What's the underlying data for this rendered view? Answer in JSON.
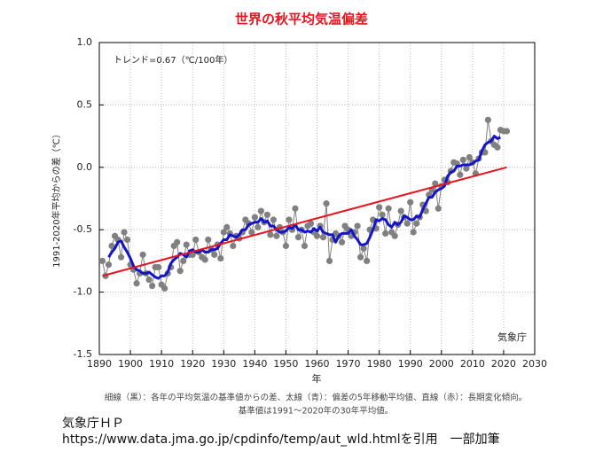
{
  "chart_data": {
    "type": "line",
    "title": "世界の秋平均気温偏差",
    "annotation": "トレンド=0.67（℃/100年）",
    "ylabel": "1991-2020年平均からの差（℃）",
    "xlabel": "年",
    "watermark": "気象庁",
    "footnotes": [
      "細線（黒）：各年の平均気温の基準値からの差、太線（青）：偏差の5年移動平均値、直線（赤）：長期変化傾向。",
      "基準値は1991～2020年の30年平均値。"
    ],
    "source": [
      "気象庁ＨＰ",
      "https://www.data.jma.go.jp/cpdinfo/temp/aut_wld.htmlを引用　一部加筆"
    ],
    "xlim": [
      1890,
      2030
    ],
    "xticks": [
      1890,
      1900,
      1910,
      1920,
      1930,
      1940,
      1950,
      1960,
      1970,
      1980,
      1990,
      2000,
      2010,
      2020,
      2030
    ],
    "ylim": [
      -1.5,
      1.0
    ],
    "yticks": [
      -1.5,
      {
        "value": -1,
        "label": "-1.0"
      },
      -0.5,
      {
        "value": 0,
        "label": "0.0"
      },
      0.5,
      {
        "value": 1,
        "label": "1.0"
      }
    ],
    "grid": true,
    "x": [
      1891,
      1892,
      1893,
      1894,
      1895,
      1896,
      1897,
      1898,
      1899,
      1900,
      1901,
      1902,
      1903,
      1904,
      1905,
      1906,
      1907,
      1908,
      1909,
      1910,
      1911,
      1912,
      1913,
      1914,
      1915,
      1916,
      1917,
      1918,
      1919,
      1920,
      1921,
      1922,
      1923,
      1924,
      1925,
      1926,
      1927,
      1928,
      1929,
      1930,
      1931,
      1932,
      1933,
      1934,
      1935,
      1936,
      1937,
      1938,
      1939,
      1940,
      1941,
      1942,
      1943,
      1944,
      1945,
      1946,
      1947,
      1948,
      1949,
      1950,
      1951,
      1952,
      1953,
      1954,
      1955,
      1956,
      1957,
      1958,
      1959,
      1960,
      1961,
      1962,
      1963,
      1964,
      1965,
      1966,
      1967,
      1968,
      1969,
      1970,
      1971,
      1972,
      1973,
      1974,
      1975,
      1976,
      1977,
      1978,
      1979,
      1980,
      1981,
      1982,
      1983,
      1984,
      1985,
      1986,
      1987,
      1988,
      1989,
      1990,
      1991,
      1992,
      1993,
      1994,
      1995,
      1996,
      1997,
      1998,
      1999,
      2000,
      2001,
      2002,
      2003,
      2004,
      2005,
      2006,
      2007,
      2008,
      2009,
      2010,
      2011,
      2012,
      2013,
      2014,
      2015,
      2016,
      2017,
      2018,
      2019,
      2020,
      2021
    ],
    "series": [
      {
        "color": "#808080",
        "markers": true,
        "width": 1,
        "values": [
          -0.75,
          -0.87,
          -0.78,
          -0.63,
          -0.55,
          -0.58,
          -0.72,
          -0.52,
          -0.58,
          -0.78,
          -0.82,
          -0.93,
          -0.85,
          -0.7,
          -0.85,
          -0.9,
          -0.95,
          -0.8,
          -0.8,
          -0.94,
          -0.97,
          -0.85,
          -0.8,
          -0.63,
          -0.6,
          -0.83,
          -0.75,
          -0.62,
          -0.7,
          -0.7,
          -0.58,
          -0.68,
          -0.72,
          -0.74,
          -0.58,
          -0.66,
          -0.7,
          -0.62,
          -0.73,
          -0.52,
          -0.48,
          -0.53,
          -0.63,
          -0.55,
          -0.57,
          -0.52,
          -0.42,
          -0.45,
          -0.52,
          -0.4,
          -0.48,
          -0.35,
          -0.44,
          -0.38,
          -0.54,
          -0.42,
          -0.55,
          -0.48,
          -0.52,
          -0.63,
          -0.42,
          -0.5,
          -0.33,
          -0.56,
          -0.5,
          -0.63,
          -0.47,
          -0.45,
          -0.52,
          -0.55,
          -0.47,
          -0.56,
          -0.29,
          -0.75,
          -0.58,
          -0.53,
          -0.55,
          -0.6,
          -0.47,
          -0.5,
          -0.55,
          -0.52,
          -0.47,
          -0.72,
          -0.65,
          -0.75,
          -0.5,
          -0.42,
          -0.49,
          -0.32,
          -0.38,
          -0.53,
          -0.33,
          -0.52,
          -0.55,
          -0.46,
          -0.35,
          -0.4,
          -0.45,
          -0.28,
          -0.52,
          -0.45,
          -0.4,
          -0.3,
          -0.35,
          -0.22,
          -0.18,
          -0.13,
          -0.33,
          -0.15,
          -0.1,
          -0.12,
          -0.03,
          0.04,
          0.03,
          -0.06,
          0.06,
          -0.01,
          0.08,
          0.04,
          -0.05,
          0.07,
          0.12,
          0.12,
          0.38,
          0.21,
          0.18,
          0.16,
          0.3,
          0.29,
          0.29
        ]
      },
      {
        "color": "#1414c8",
        "markers": false,
        "width": 3,
        "values": [
          null,
          null,
          -0.72,
          -0.68,
          -0.65,
          -0.6,
          -0.59,
          -0.64,
          -0.68,
          -0.73,
          -0.79,
          -0.82,
          -0.83,
          -0.85,
          -0.85,
          -0.84,
          -0.86,
          -0.88,
          -0.89,
          -0.87,
          -0.87,
          -0.84,
          -0.77,
          -0.74,
          -0.72,
          -0.69,
          -0.7,
          -0.72,
          -0.67,
          -0.66,
          -0.68,
          -0.68,
          -0.66,
          -0.68,
          -0.68,
          -0.66,
          -0.66,
          -0.65,
          -0.61,
          -0.58,
          -0.58,
          -0.54,
          -0.55,
          -0.56,
          -0.54,
          -0.5,
          -0.5,
          -0.46,
          -0.45,
          -0.44,
          -0.44,
          -0.41,
          -0.44,
          -0.43,
          -0.47,
          -0.47,
          -0.5,
          -0.52,
          -0.52,
          -0.51,
          -0.48,
          -0.49,
          -0.46,
          -0.5,
          -0.5,
          -0.52,
          -0.51,
          -0.52,
          -0.49,
          -0.51,
          -0.48,
          -0.52,
          -0.53,
          -0.54,
          -0.54,
          -0.6,
          -0.55,
          -0.53,
          -0.53,
          -0.53,
          -0.5,
          -0.55,
          -0.58,
          -0.62,
          -0.62,
          -0.61,
          -0.56,
          -0.5,
          -0.42,
          -0.43,
          -0.41,
          -0.42,
          -0.46,
          -0.48,
          -0.44,
          -0.46,
          -0.44,
          -0.39,
          -0.4,
          -0.42,
          -0.42,
          -0.39,
          -0.4,
          -0.34,
          -0.29,
          -0.24,
          -0.24,
          -0.2,
          -0.18,
          -0.17,
          -0.15,
          -0.07,
          -0.04,
          -0.03,
          0.01,
          0.01,
          0.02,
          0.02,
          0.02,
          0.03,
          0.05,
          0.06,
          0.13,
          0.18,
          0.2,
          0.21,
          0.25,
          0.23,
          0.24,
          null,
          null
        ]
      },
      {
        "color": "#e8141e",
        "markers": false,
        "width": 2,
        "x": [
          1891,
          2021
        ],
        "values": [
          -0.87,
          0.0
        ]
      }
    ]
  }
}
